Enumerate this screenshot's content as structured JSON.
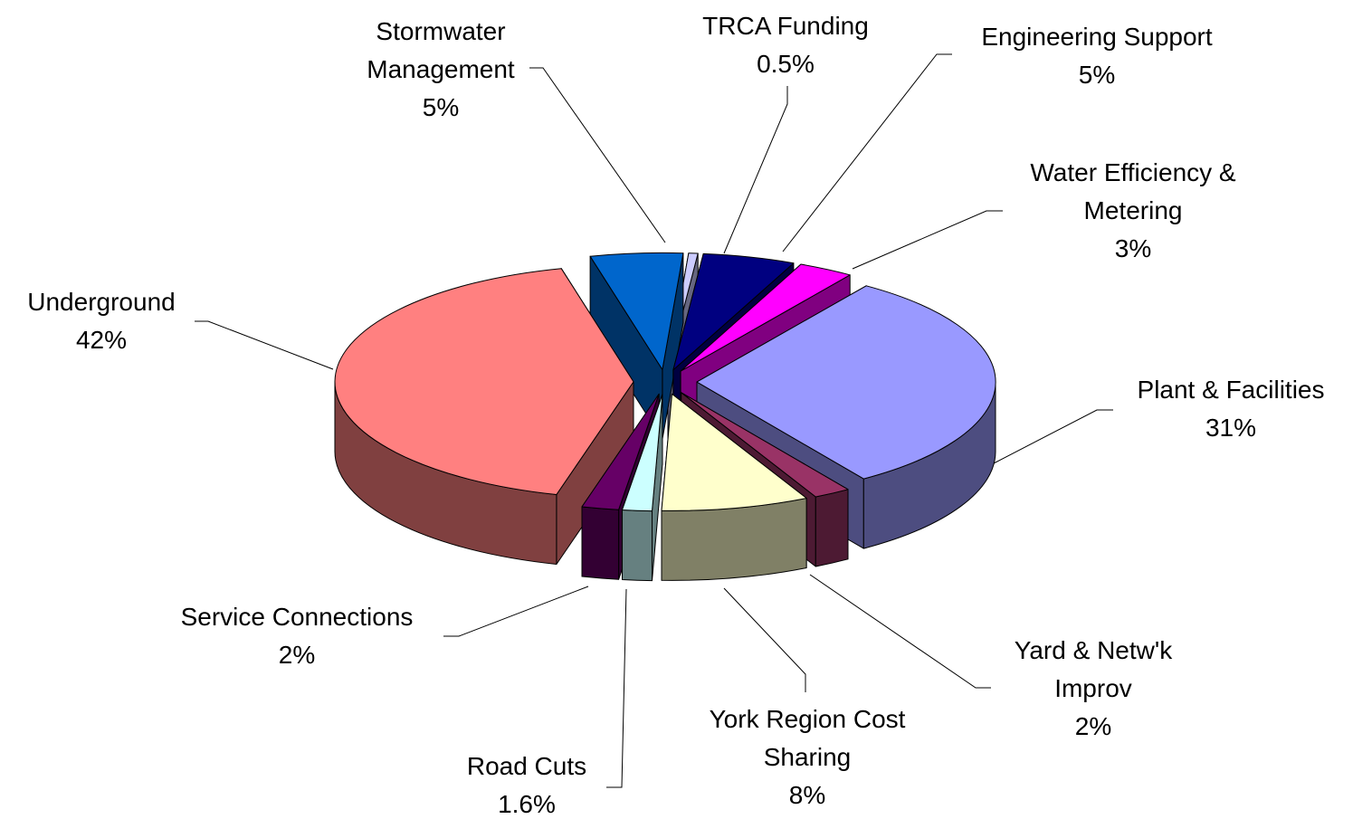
{
  "chart_data": {
    "type": "pie3d",
    "categories": [
      "Stormwater Management",
      "TRCA Funding",
      "Engineering Support",
      "Water Efficiency & Metering",
      "Plant & Facilities",
      "Yard & Netw'k Improv",
      "York Region Cost Sharing",
      "Road Cuts",
      "Service Connections",
      "Underground"
    ],
    "values": [
      5,
      0.5,
      5,
      3,
      31,
      2,
      8,
      1.6,
      2,
      42
    ],
    "value_labels": [
      "5%",
      "0.5%",
      "5%",
      "3%",
      "31%",
      "2%",
      "8%",
      "1.6%",
      "2%",
      "42%"
    ],
    "colors": [
      "#0066cc",
      "#ccccff",
      "#000080",
      "#ff00ff",
      "#9999ff",
      "#993366",
      "#ffffcc",
      "#ccffff",
      "#660066",
      "#ff8080"
    ]
  }
}
